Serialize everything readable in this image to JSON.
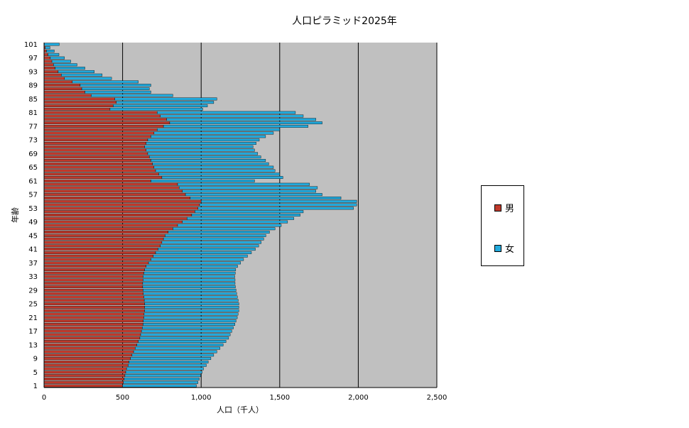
{
  "chart_data": {
    "type": "bar",
    "orientation": "horizontal",
    "stacked": true,
    "title": "人口ピラミッド2025年",
    "xlabel": "人口（千人）",
    "ylabel": "年齢",
    "xlim": [
      0,
      2500
    ],
    "xticks": [
      0,
      500,
      1000,
      1500,
      2000,
      2500
    ],
    "xtick_labels": [
      "0",
      "500",
      "1,000",
      "1,500",
      "2,000",
      "2,500"
    ],
    "ytick_labels": [
      "1",
      "5",
      "9",
      "13",
      "17",
      "21",
      "25",
      "29",
      "33",
      "37",
      "41",
      "45",
      "49",
      "53",
      "57",
      "61",
      "65",
      "69",
      "73",
      "77",
      "81",
      "85",
      "89",
      "93",
      "97",
      "101"
    ],
    "grid": "vertical",
    "legend_position": "right",
    "categories": [
      1,
      2,
      3,
      4,
      5,
      6,
      7,
      8,
      9,
      10,
      11,
      12,
      13,
      14,
      15,
      16,
      17,
      18,
      19,
      20,
      21,
      22,
      23,
      24,
      25,
      26,
      27,
      28,
      29,
      30,
      31,
      32,
      33,
      34,
      35,
      36,
      37,
      38,
      39,
      40,
      41,
      42,
      43,
      44,
      45,
      46,
      47,
      48,
      49,
      50,
      51,
      52,
      53,
      54,
      55,
      56,
      57,
      58,
      59,
      60,
      61,
      62,
      63,
      64,
      65,
      66,
      67,
      68,
      69,
      70,
      71,
      72,
      73,
      74,
      75,
      76,
      77,
      78,
      79,
      80,
      81,
      82,
      83,
      84,
      85,
      86,
      87,
      88,
      89,
      90,
      91,
      92,
      93,
      94,
      95,
      96,
      97,
      98,
      99,
      100,
      101
    ],
    "series": [
      {
        "name": "男",
        "color": "#c0392b",
        "values": [
          500,
          505,
          510,
          515,
          520,
          525,
          535,
          540,
          550,
          560,
          570,
          580,
          590,
          600,
          610,
          615,
          620,
          625,
          630,
          632,
          635,
          637,
          640,
          640,
          640,
          638,
          635,
          632,
          630,
          628,
          628,
          630,
          630,
          635,
          640,
          650,
          665,
          680,
          695,
          710,
          725,
          740,
          750,
          760,
          770,
          790,
          820,
          850,
          880,
          910,
          940,
          960,
          980,
          990,
          1000,
          930,
          900,
          880,
          860,
          850,
          680,
          750,
          730,
          710,
          700,
          690,
          680,
          670,
          660,
          650,
          640,
          650,
          660,
          680,
          700,
          720,
          760,
          800,
          780,
          740,
          720,
          420,
          440,
          460,
          450,
          300,
          260,
          240,
          230,
          180,
          130,
          110,
          90,
          70,
          60,
          50,
          40,
          25,
          15,
          8,
          2
        ]
      },
      {
        "name": "女",
        "color": "#22aadd",
        "values": [
          470,
          475,
          478,
          482,
          486,
          490,
          498,
          505,
          512,
          520,
          530,
          540,
          550,
          558,
          565,
          570,
          575,
          580,
          585,
          590,
          595,
          598,
          600,
          600,
          600,
          598,
          596,
          594,
          592,
          590,
          588,
          586,
          584,
          582,
          580,
          582,
          586,
          590,
          600,
          610,
          620,
          626,
          632,
          638,
          642,
          645,
          650,
          660,
          670,
          680,
          690,
          690,
          990,
          1000,
          990,
          960,
          870,
          850,
          880,
          840,
          660,
          770,
          770,
          760,
          760,
          740,
          730,
          710,
          700,
          690,
          690,
          700,
          710,
          730,
          760,
          780,
          920,
          970,
          950,
          910,
          880,
          590,
          600,
          620,
          650,
          520,
          420,
          430,
          450,
          420,
          300,
          260,
          230,
          190,
          150,
          120,
          90,
          70,
          50,
          30,
          95
        ]
      }
    ]
  }
}
